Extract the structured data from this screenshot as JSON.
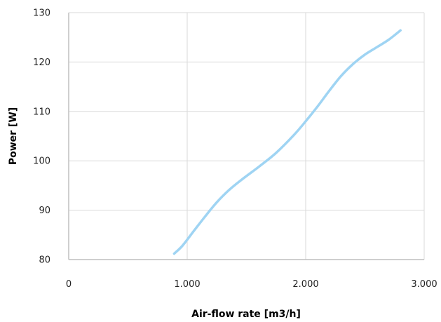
{
  "chart_data": {
    "type": "line",
    "title": "",
    "xlabel": "Air-flow rate [m3/h]",
    "ylabel": "Power [W]",
    "xlim": [
      0,
      3000
    ],
    "ylim": [
      80,
      130
    ],
    "x_ticks": [
      {
        "value": 0,
        "label": "0"
      },
      {
        "value": 1000,
        "label": "1.000"
      },
      {
        "value": 2000,
        "label": "2.000"
      },
      {
        "value": 3000,
        "label": "3.000"
      }
    ],
    "y_ticks": [
      {
        "value": 80,
        "label": "80"
      },
      {
        "value": 90,
        "label": "90"
      },
      {
        "value": 100,
        "label": "100"
      },
      {
        "value": 110,
        "label": "110"
      },
      {
        "value": 120,
        "label": "120"
      },
      {
        "value": 130,
        "label": "130"
      }
    ],
    "grid": true,
    "legend": "none",
    "series": [
      {
        "color": "#9fd4f3",
        "x": [
          890,
          960,
          1050,
          1150,
          1250,
          1350,
          1450,
          1600,
          1750,
          1900,
          2000,
          2100,
          2200,
          2300,
          2400,
          2500,
          2600,
          2700,
          2800
        ],
        "y": [
          81.2,
          82.8,
          85.6,
          88.7,
          91.6,
          94.0,
          96.0,
          98.7,
          101.6,
          105.2,
          108.0,
          111.0,
          114.2,
          117.2,
          119.6,
          121.5,
          123.0,
          124.5,
          126.4
        ]
      }
    ]
  }
}
